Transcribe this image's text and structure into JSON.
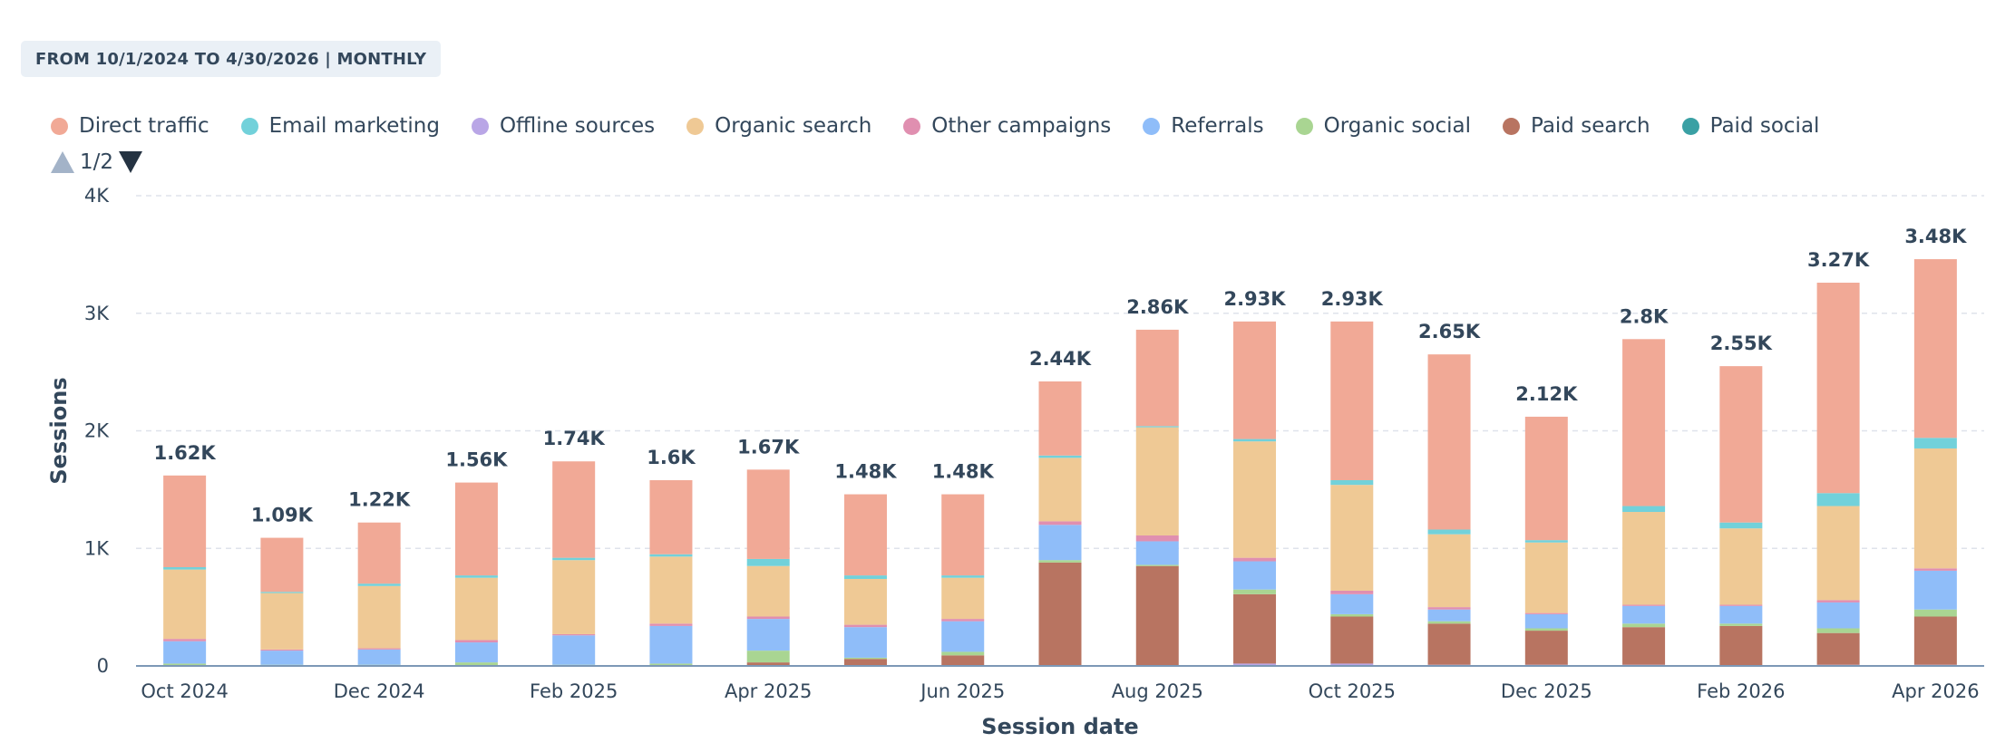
{
  "filter": {
    "label": "FROM 10/1/2024 TO 4/30/2026 | MONTHLY"
  },
  "pager": {
    "text": "1/2"
  },
  "chart_data": {
    "type": "bar",
    "stacked": true,
    "title": "",
    "xlabel": "Session date",
    "ylabel": "Sessions",
    "ylim": [
      0,
      4000
    ],
    "yticks": [
      {
        "value": 0,
        "label": "0"
      },
      {
        "value": 1000,
        "label": "1K"
      },
      {
        "value": 2000,
        "label": "2K"
      },
      {
        "value": 3000,
        "label": "3K"
      },
      {
        "value": 4000,
        "label": "4K"
      }
    ],
    "grid": true,
    "legend_position": "top-left",
    "categories": [
      "Oct 2024",
      "Nov 2024",
      "Dec 2024",
      "Jan 2025",
      "Feb 2025",
      "Mar 2025",
      "Apr 2025",
      "May 2025",
      "Jun 2025",
      "Jul 2025",
      "Aug 2025",
      "Sep 2025",
      "Oct 2025",
      "Nov 2025",
      "Dec 2025",
      "Jan 2026",
      "Feb 2026",
      "Mar 2026",
      "Apr 2026"
    ],
    "xtick_labels": [
      {
        "index": 0,
        "label": "Oct 2024"
      },
      {
        "index": 2,
        "label": "Dec 2024"
      },
      {
        "index": 4,
        "label": "Feb 2025"
      },
      {
        "index": 6,
        "label": "Apr 2025"
      },
      {
        "index": 8,
        "label": "Jun 2025"
      },
      {
        "index": 10,
        "label": "Aug 2025"
      },
      {
        "index": 12,
        "label": "Oct 2025"
      },
      {
        "index": 14,
        "label": "Dec 2025"
      },
      {
        "index": 16,
        "label": "Feb 2026"
      },
      {
        "index": 18,
        "label": "Apr 2026"
      }
    ],
    "totals": [
      "1.62K",
      "1.09K",
      "1.22K",
      "1.56K",
      "1.74K",
      "1.6K",
      "1.67K",
      "1.48K",
      "1.48K",
      "2.44K",
      "2.86K",
      "2.93K",
      "2.93K",
      "2.65K",
      "2.12K",
      "2.8K",
      "2.55K",
      "3.27K",
      "3.48K"
    ],
    "series": [
      {
        "name": "Offline sources",
        "color": "#b9a6e6",
        "values": [
          0,
          0,
          0,
          0,
          0,
          0,
          0,
          0,
          0,
          0,
          0,
          20,
          20,
          10,
          10,
          10,
          0,
          10,
          10
        ]
      },
      {
        "name": "Paid search",
        "color": "#b87461",
        "values": [
          0,
          0,
          0,
          0,
          0,
          0,
          30,
          60,
          90,
          880,
          850,
          590,
          400,
          350,
          290,
          320,
          340,
          270,
          410
        ]
      },
      {
        "name": "Organic social",
        "color": "#a9d592",
        "values": [
          20,
          10,
          10,
          30,
          10,
          20,
          100,
          10,
          30,
          20,
          10,
          40,
          20,
          20,
          20,
          30,
          20,
          40,
          60
        ]
      },
      {
        "name": "Referrals",
        "color": "#8fbdf9",
        "values": [
          190,
          120,
          130,
          170,
          250,
          320,
          270,
          260,
          260,
          300,
          200,
          240,
          170,
          100,
          120,
          150,
          150,
          220,
          330
        ]
      },
      {
        "name": "Other campaigns",
        "color": "#e08fb0",
        "values": [
          20,
          10,
          10,
          20,
          10,
          20,
          20,
          20,
          20,
          30,
          50,
          30,
          30,
          20,
          10,
          10,
          10,
          20,
          20
        ]
      },
      {
        "name": "Organic search",
        "color": "#efc995",
        "values": [
          590,
          480,
          530,
          530,
          630,
          570,
          430,
          390,
          350,
          540,
          920,
          990,
          900,
          620,
          600,
          790,
          650,
          800,
          1020
        ]
      },
      {
        "name": "Email marketing",
        "color": "#72d1da",
        "values": [
          20,
          10,
          20,
          20,
          20,
          20,
          60,
          30,
          20,
          20,
          10,
          20,
          40,
          40,
          20,
          50,
          50,
          110,
          90
        ]
      },
      {
        "name": "Paid social",
        "color": "#3aa0a4",
        "values": [
          0,
          0,
          0,
          0,
          0,
          0,
          0,
          0,
          0,
          0,
          0,
          0,
          0,
          0,
          0,
          0,
          0,
          0,
          0
        ]
      },
      {
        "name": "Direct traffic",
        "color": "#f1a996",
        "values": [
          780,
          460,
          520,
          790,
          820,
          630,
          760,
          690,
          690,
          630,
          820,
          1000,
          1350,
          1490,
          1050,
          1420,
          1330,
          1790,
          1520
        ]
      }
    ]
  },
  "legend": [
    {
      "label": "Direct traffic",
      "color": "#f1a996"
    },
    {
      "label": "Email marketing",
      "color": "#72d1da"
    },
    {
      "label": "Offline sources",
      "color": "#b9a6e6"
    },
    {
      "label": "Organic search",
      "color": "#efc995"
    },
    {
      "label": "Other campaigns",
      "color": "#e08fb0"
    },
    {
      "label": "Referrals",
      "color": "#8fbdf9"
    },
    {
      "label": "Organic social",
      "color": "#a9d592"
    },
    {
      "label": "Paid search",
      "color": "#b87461"
    },
    {
      "label": "Paid social",
      "color": "#3aa0a4"
    }
  ]
}
